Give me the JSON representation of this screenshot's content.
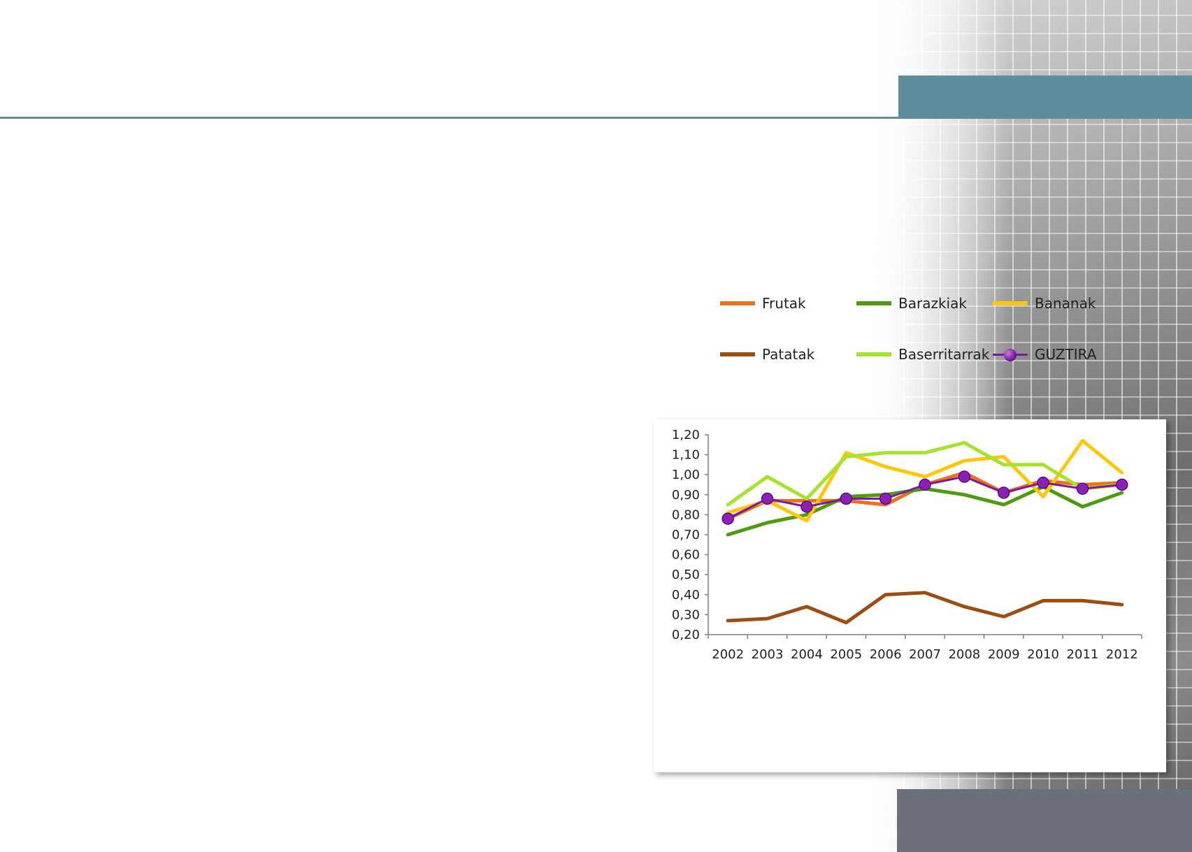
{
  "colors": {
    "accent_teal": "#5f8d9e",
    "footer_gray": "#6b707b"
  },
  "chart_data": {
    "type": "line",
    "categories": [
      "2002",
      "2003",
      "2004",
      "2005",
      "2006",
      "2007",
      "2008",
      "2009",
      "2010",
      "2011",
      "2012"
    ],
    "ylim": [
      0.2,
      1.2
    ],
    "yticks": [
      "1,20",
      "1,10",
      "1,00",
      "0,90",
      "0,80",
      "0,70",
      "0,60",
      "0,50",
      "0,40",
      "0,30",
      "0,20"
    ],
    "grid": false,
    "legend_position": "bottom",
    "series": [
      {
        "name": "Frutak",
        "color": "#e8731f",
        "values": [
          0.78,
          0.87,
          0.87,
          0.87,
          0.85,
          0.95,
          1.01,
          0.91,
          0.97,
          0.95,
          0.96
        ]
      },
      {
        "name": "Barazkiak",
        "color": "#4e9a10",
        "values": [
          0.7,
          0.76,
          0.8,
          0.89,
          0.9,
          0.93,
          0.9,
          0.85,
          0.94,
          0.84,
          0.91
        ]
      },
      {
        "name": "Bananak",
        "color": "#ffc60a",
        "values": [
          0.81,
          0.87,
          0.77,
          1.11,
          1.04,
          0.99,
          1.07,
          1.09,
          0.89,
          1.17,
          1.01
        ]
      },
      {
        "name": "Patatak",
        "color": "#9b4e12",
        "values": [
          0.27,
          0.28,
          0.34,
          0.26,
          0.4,
          0.41,
          0.34,
          0.29,
          0.37,
          0.37,
          0.35
        ]
      },
      {
        "name": "Baserritarrak",
        "color": "#a6e22e",
        "values": [
          0.85,
          0.99,
          0.88,
          1.09,
          1.11,
          1.11,
          1.16,
          1.05,
          1.05,
          0.93,
          0.95
        ]
      },
      {
        "name": "GUZTIRA",
        "color": "#7a1aa0",
        "marker": "circle",
        "values": [
          0.78,
          0.88,
          0.84,
          0.88,
          0.88,
          0.95,
          0.99,
          0.91,
          0.96,
          0.93,
          0.95
        ]
      }
    ]
  }
}
